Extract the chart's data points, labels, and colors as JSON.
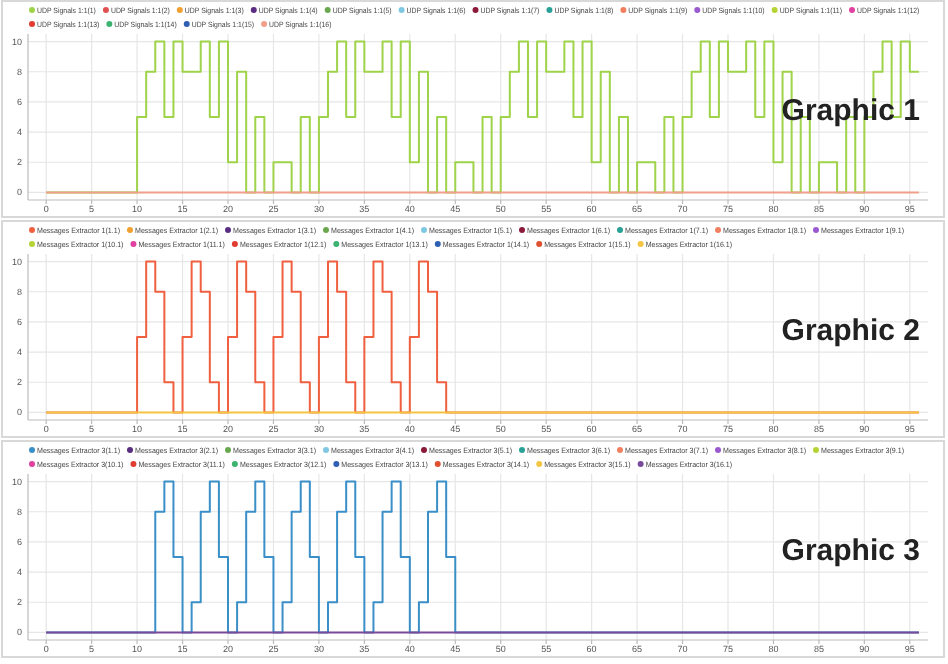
{
  "chart_data": [
    {
      "type": "step",
      "legend": "top",
      "grid": true,
      "xlim": [
        -2,
        97
      ],
      "ylim": [
        -0.5,
        10.5
      ],
      "xticks": [
        0,
        5,
        10,
        15,
        20,
        25,
        30,
        35,
        40,
        45,
        50,
        55,
        60,
        65,
        70,
        75,
        80,
        85,
        90,
        95
      ],
      "yticks": [
        0,
        2,
        4,
        6,
        8,
        10
      ],
      "annotations": [
        "Graphic 1"
      ],
      "series": [
        {
          "name": "UDP Signals 1:1(1)",
          "color": "#9ed34a",
          "x": [
            0,
            10,
            11,
            12,
            13,
            14,
            15,
            16,
            17,
            18,
            19,
            20,
            21,
            22,
            23,
            24,
            25,
            26,
            27,
            28,
            29,
            30,
            31,
            32,
            33,
            34,
            35,
            36,
            37,
            38,
            39,
            40,
            41,
            42,
            43,
            44,
            45,
            46,
            47,
            48,
            49,
            50,
            51,
            52,
            53,
            54,
            55,
            56,
            57,
            58,
            59,
            60,
            61,
            62,
            63,
            64,
            65,
            66,
            67,
            68,
            69,
            70,
            71,
            72,
            73,
            74,
            75,
            76,
            77,
            78,
            79,
            80,
            81,
            82,
            83,
            84,
            85,
            86,
            87,
            88,
            89,
            90,
            91,
            92,
            93,
            94,
            95,
            96
          ],
          "values": [
            0,
            5,
            8,
            10,
            5,
            10,
            8,
            8,
            10,
            5,
            10,
            2,
            8,
            0,
            5,
            0,
            2,
            2,
            0,
            5,
            0,
            5,
            8,
            10,
            5,
            10,
            8,
            8,
            10,
            5,
            10,
            2,
            8,
            0,
            5,
            0,
            2,
            2,
            0,
            5,
            0,
            5,
            8,
            10,
            5,
            10,
            8,
            8,
            10,
            5,
            10,
            2,
            8,
            0,
            5,
            0,
            2,
            2,
            0,
            5,
            0,
            5,
            8,
            10,
            5,
            10,
            8,
            8,
            10,
            5,
            10,
            2,
            8,
            0,
            5,
            0,
            2,
            2,
            0,
            5,
            0,
            5,
            8,
            10,
            5,
            10,
            8,
            8
          ]
        },
        {
          "name": "UDP Signals 1:1(2)",
          "color": "#e05050"
        },
        {
          "name": "UDP Signals 1:1(3)",
          "color": "#f0a030"
        },
        {
          "name": "UDP Signals 1:1(4)",
          "color": "#5a2d82"
        },
        {
          "name": "UDP Signals 1:1(5)",
          "color": "#6aa84f"
        },
        {
          "name": "UDP Signals 1:1(6)",
          "color": "#7ec8e3"
        },
        {
          "name": "UDP Signals 1:1(7)",
          "color": "#8b1a3a"
        },
        {
          "name": "UDP Signals 1:1(8)",
          "color": "#2aa198"
        },
        {
          "name": "UDP Signals 1:1(9)",
          "color": "#f08060"
        },
        {
          "name": "UDP Signals 1:1(10)",
          "color": "#9b59d0"
        },
        {
          "name": "UDP Signals 1:1(11)",
          "color": "#b5d334"
        },
        {
          "name": "UDP Signals 1:1(12)",
          "color": "#e040a0"
        },
        {
          "name": "UDP Signals 1:1(13)",
          "color": "#e03c31"
        },
        {
          "name": "UDP Signals 1:1(14)",
          "color": "#3cb371"
        },
        {
          "name": "UDP Signals 1:1(15)",
          "color": "#2f5fb3"
        },
        {
          "name": "UDP Signals 1:1(16)",
          "color": "#f0a08a",
          "x": [
            0,
            96
          ],
          "values": [
            0,
            0
          ]
        }
      ]
    },
    {
      "type": "step",
      "legend": "top",
      "grid": true,
      "xlim": [
        -2,
        97
      ],
      "ylim": [
        -0.5,
        10.5
      ],
      "xticks": [
        0,
        5,
        10,
        15,
        20,
        25,
        30,
        35,
        40,
        45,
        50,
        55,
        60,
        65,
        70,
        75,
        80,
        85,
        90,
        95
      ],
      "yticks": [
        0,
        2,
        4,
        6,
        8,
        10
      ],
      "annotations": [
        "Graphic 2"
      ],
      "series": [
        {
          "name": "Messages Extractor 1(1.1)",
          "color": "#f06040",
          "x": [
            0,
            10,
            11,
            12,
            13,
            14,
            15,
            16,
            17,
            18,
            19,
            20,
            21,
            22,
            23,
            24,
            25,
            26,
            27,
            28,
            29,
            30,
            31,
            32,
            33,
            34,
            35,
            36,
            37,
            38,
            39,
            40,
            41,
            42,
            43,
            44,
            96
          ],
          "values": [
            0,
            5,
            10,
            8,
            2,
            0,
            5,
            10,
            8,
            2,
            0,
            5,
            10,
            8,
            2,
            0,
            5,
            10,
            8,
            2,
            0,
            5,
            10,
            8,
            2,
            0,
            5,
            10,
            8,
            2,
            0,
            5,
            10,
            8,
            2,
            0,
            0
          ]
        },
        {
          "name": "Messages Extractor 1(2.1)",
          "color": "#f0a030"
        },
        {
          "name": "Messages Extractor 1(3.1)",
          "color": "#5a2d82"
        },
        {
          "name": "Messages Extractor 1(4.1)",
          "color": "#6aa84f"
        },
        {
          "name": "Messages Extractor 1(5.1)",
          "color": "#7ec8e3"
        },
        {
          "name": "Messages Extractor 1(6.1)",
          "color": "#8b1a3a"
        },
        {
          "name": "Messages Extractor 1(7.1)",
          "color": "#2aa198"
        },
        {
          "name": "Messages Extractor 1(8.1)",
          "color": "#f08060"
        },
        {
          "name": "Messages Extractor 1(9.1)",
          "color": "#9b59d0"
        },
        {
          "name": "Messages Extractor 1(10.1)",
          "color": "#b5d334"
        },
        {
          "name": "Messages Extractor 1(11.1)",
          "color": "#e040a0"
        },
        {
          "name": "Messages Extractor 1(12.1)",
          "color": "#e03c31"
        },
        {
          "name": "Messages Extractor 1(13.1)",
          "color": "#3cb371"
        },
        {
          "name": "Messages Extractor 1(14.1)",
          "color": "#2f5fb3"
        },
        {
          "name": "Messages Extractor 1(15.1)",
          "color": "#e05030"
        },
        {
          "name": "Messages Extractor 1(16.1)",
          "color": "#f5c542",
          "x": [
            0,
            96
          ],
          "values": [
            0,
            0
          ]
        }
      ]
    },
    {
      "type": "step",
      "legend": "top",
      "grid": true,
      "xlim": [
        -2,
        97
      ],
      "ylim": [
        -0.5,
        10.5
      ],
      "xticks": [
        0,
        5,
        10,
        15,
        20,
        25,
        30,
        35,
        40,
        45,
        50,
        55,
        60,
        65,
        70,
        75,
        80,
        85,
        90,
        95
      ],
      "yticks": [
        0,
        2,
        4,
        6,
        8,
        10
      ],
      "annotations": [
        "Graphic 3"
      ],
      "series": [
        {
          "name": "Messages Extractor 3(1.1)",
          "color": "#3a8fc8",
          "x": [
            0,
            12,
            13,
            14,
            15,
            16,
            17,
            18,
            19,
            20,
            21,
            22,
            23,
            24,
            25,
            26,
            27,
            28,
            29,
            30,
            31,
            32,
            33,
            34,
            35,
            36,
            37,
            38,
            39,
            40,
            41,
            42,
            43,
            44,
            45,
            96
          ],
          "values": [
            0,
            8,
            10,
            5,
            0,
            2,
            8,
            10,
            5,
            0,
            2,
            8,
            10,
            5,
            0,
            2,
            8,
            10,
            5,
            0,
            2,
            8,
            10,
            5,
            0,
            2,
            8,
            10,
            5,
            0,
            2,
            8,
            10,
            5,
            0,
            0
          ]
        },
        {
          "name": "Messages Extractor 3(2.1)",
          "color": "#5a2d82"
        },
        {
          "name": "Messages Extractor 3(3.1)",
          "color": "#6aa84f"
        },
        {
          "name": "Messages Extractor 3(4.1)",
          "color": "#7ec8e3"
        },
        {
          "name": "Messages Extractor 3(5.1)",
          "color": "#8b1a3a"
        },
        {
          "name": "Messages Extractor 3(6.1)",
          "color": "#2aa198"
        },
        {
          "name": "Messages Extractor 3(7.1)",
          "color": "#f08060"
        },
        {
          "name": "Messages Extractor 3(8.1)",
          "color": "#9b59d0"
        },
        {
          "name": "Messages Extractor 3(9.1)",
          "color": "#b5d334"
        },
        {
          "name": "Messages Extractor 3(10.1)",
          "color": "#e040a0"
        },
        {
          "name": "Messages Extractor 3(11.1)",
          "color": "#e03c31"
        },
        {
          "name": "Messages Extractor 3(12.1)",
          "color": "#3cb371"
        },
        {
          "name": "Messages Extractor 3(13.1)",
          "color": "#2f5fb3"
        },
        {
          "name": "Messages Extractor 3(14.1)",
          "color": "#e05030"
        },
        {
          "name": "Messages Extractor 3(15.1)",
          "color": "#f5c542"
        },
        {
          "name": "Messages Extractor 3(16.1)",
          "color": "#7a4a9a",
          "x": [
            0,
            96
          ],
          "values": [
            0,
            0
          ]
        }
      ]
    }
  ]
}
